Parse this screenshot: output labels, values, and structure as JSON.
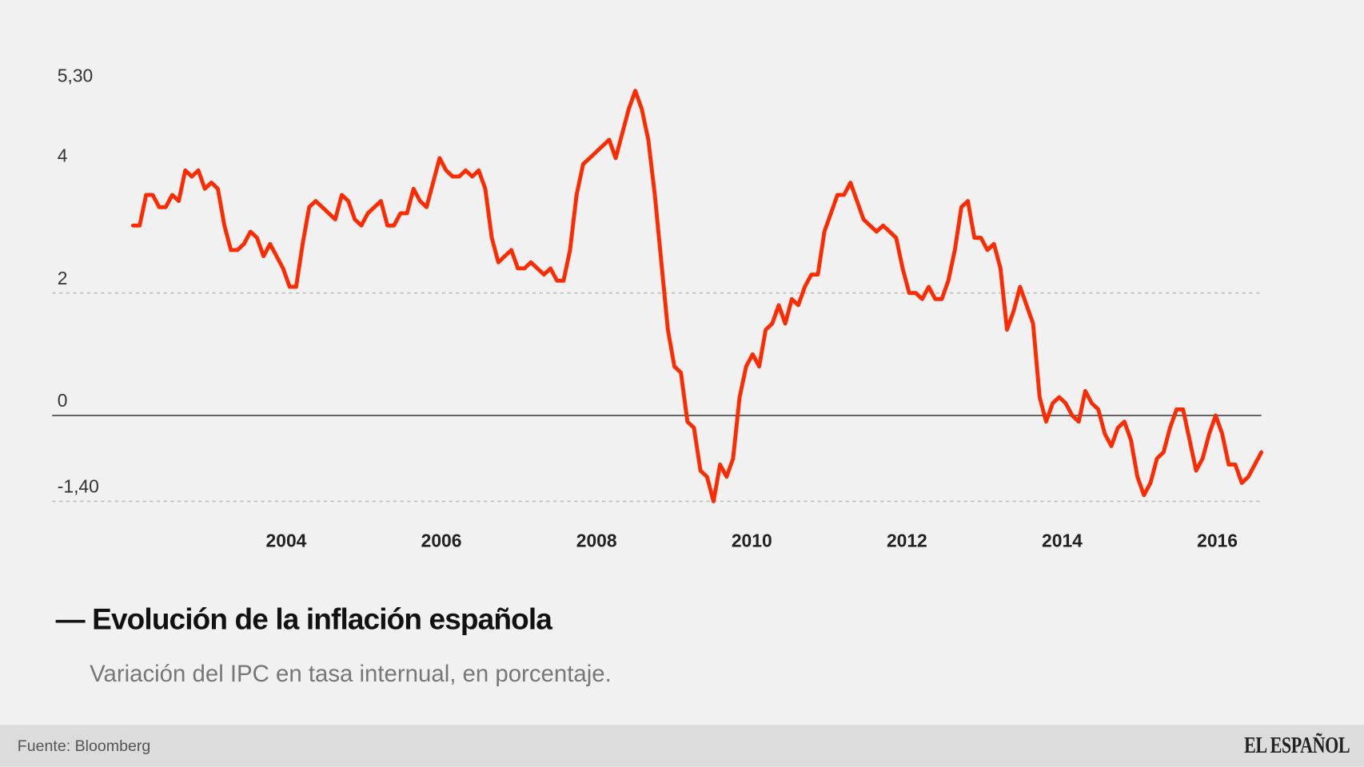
{
  "chart_data": {
    "type": "line",
    "title": "Evolución de la inflación española",
    "subtitle": "Variación del IPC en tasa internual, en porcentaje.",
    "source": "Fuente: Bloomberg",
    "ylim": [
      -1.4,
      5.3
    ],
    "yticks": [
      {
        "value": 5.3,
        "label": "5,30"
      },
      {
        "value": 4,
        "label": "4"
      },
      {
        "value": 2,
        "label": "2"
      },
      {
        "value": 0,
        "label": "0"
      },
      {
        "value": -1.4,
        "label": "-1,40"
      }
    ],
    "xticks": [
      "2004",
      "2006",
      "2008",
      "2010",
      "2012",
      "2014",
      "2016"
    ],
    "gridlines": {
      "dashed": [
        2,
        -1.4
      ],
      "solid": [
        0
      ]
    },
    "line_color": "#ff2a00",
    "series": [
      {
        "x": [
          "2002-01",
          "2002-02",
          "2002-03",
          "2002-04",
          "2002-05",
          "2002-06",
          "2002-07",
          "2002-08",
          "2002-09",
          "2002-10",
          "2002-11",
          "2002-12",
          "2003-01",
          "2003-02",
          "2003-03",
          "2003-04",
          "2003-05",
          "2003-06",
          "2003-07",
          "2003-08",
          "2003-09",
          "2003-10",
          "2003-11",
          "2003-12",
          "2004-01",
          "2004-02",
          "2004-03",
          "2004-04",
          "2004-05",
          "2004-06",
          "2004-07",
          "2004-08",
          "2004-09",
          "2004-10",
          "2004-11",
          "2004-12",
          "2005-01",
          "2005-02",
          "2005-03",
          "2005-04",
          "2005-05",
          "2005-06",
          "2005-07",
          "2005-08",
          "2005-09",
          "2005-10",
          "2005-11",
          "2005-12",
          "2006-01",
          "2006-02",
          "2006-03",
          "2006-04",
          "2006-05",
          "2006-06",
          "2006-07",
          "2006-08",
          "2006-09",
          "2006-10",
          "2006-11",
          "2006-12",
          "2007-01",
          "2007-02",
          "2007-03",
          "2007-04",
          "2007-05",
          "2007-06",
          "2007-07",
          "2007-08",
          "2007-09",
          "2007-10",
          "2007-11",
          "2007-12",
          "2008-01",
          "2008-02",
          "2008-03",
          "2008-04",
          "2008-05",
          "2008-06",
          "2008-07",
          "2008-08",
          "2008-09",
          "2008-10",
          "2008-11",
          "2008-12",
          "2009-01",
          "2009-02",
          "2009-03",
          "2009-04",
          "2009-05",
          "2009-06",
          "2009-07",
          "2009-08",
          "2009-09",
          "2009-10",
          "2009-11",
          "2009-12",
          "2010-01",
          "2010-02",
          "2010-03",
          "2010-04",
          "2010-05",
          "2010-06",
          "2010-07",
          "2010-08",
          "2010-09",
          "2010-10",
          "2010-11",
          "2010-12",
          "2011-01",
          "2011-02",
          "2011-03",
          "2011-04",
          "2011-05",
          "2011-06",
          "2011-07",
          "2011-08",
          "2011-09",
          "2011-10",
          "2011-11",
          "2011-12",
          "2012-01",
          "2012-02",
          "2012-03",
          "2012-04",
          "2012-05",
          "2012-06",
          "2012-07",
          "2012-08",
          "2012-09",
          "2012-10",
          "2012-11",
          "2012-12",
          "2013-01",
          "2013-02",
          "2013-03",
          "2013-04",
          "2013-05",
          "2013-06",
          "2013-07",
          "2013-08",
          "2013-09",
          "2013-10",
          "2013-11",
          "2013-12",
          "2014-01",
          "2014-02",
          "2014-03",
          "2014-04",
          "2014-05",
          "2014-06",
          "2014-07",
          "2014-08",
          "2014-09",
          "2014-10",
          "2014-11",
          "2014-12",
          "2015-01",
          "2015-02",
          "2015-03",
          "2015-04",
          "2015-05",
          "2015-06",
          "2015-07",
          "2015-08",
          "2015-09",
          "2015-10",
          "2015-11",
          "2015-12",
          "2016-01",
          "2016-02",
          "2016-03",
          "2016-04",
          "2016-05",
          "2016-06"
        ],
        "values": [
          3.1,
          3.1,
          3.6,
          3.6,
          3.4,
          3.4,
          3.6,
          3.5,
          4.0,
          3.9,
          4.0,
          3.7,
          3.8,
          3.7,
          3.1,
          2.7,
          2.7,
          2.8,
          3.0,
          2.9,
          2.6,
          2.8,
          2.6,
          2.4,
          2.1,
          2.1,
          2.8,
          3.4,
          3.5,
          3.4,
          3.3,
          3.2,
          3.6,
          3.5,
          3.2,
          3.1,
          3.3,
          3.4,
          3.5,
          3.1,
          3.1,
          3.3,
          3.3,
          3.7,
          3.5,
          3.4,
          3.8,
          4.2,
          4.0,
          3.9,
          3.9,
          4.0,
          3.9,
          4.0,
          3.7,
          2.9,
          2.5,
          2.6,
          2.7,
          2.4,
          2.4,
          2.5,
          2.4,
          2.3,
          2.4,
          2.2,
          2.2,
          2.7,
          3.6,
          4.1,
          4.2,
          4.3,
          4.4,
          4.5,
          4.2,
          4.6,
          5.0,
          5.3,
          5.0,
          4.5,
          3.6,
          2.5,
          1.4,
          0.8,
          0.7,
          -0.1,
          -0.2,
          -0.9,
          -1.0,
          -1.4,
          -0.8,
          -1.0,
          -0.7,
          0.3,
          0.8,
          1.0,
          0.8,
          1.4,
          1.5,
          1.8,
          1.5,
          1.9,
          1.8,
          2.1,
          2.3,
          2.3,
          3.0,
          3.3,
          3.6,
          3.6,
          3.8,
          3.5,
          3.2,
          3.1,
          3.0,
          3.1,
          3.0,
          2.9,
          2.4,
          2.0,
          2.0,
          1.9,
          2.1,
          1.9,
          1.9,
          2.2,
          2.7,
          3.4,
          3.5,
          2.9,
          2.9,
          2.7,
          2.8,
          2.4,
          1.4,
          1.7,
          2.1,
          1.8,
          1.5,
          0.3,
          -0.1,
          0.2,
          0.3,
          0.2,
          0.0,
          -0.1,
          0.4,
          0.2,
          0.1,
          -0.3,
          -0.5,
          -0.2,
          -0.1,
          -0.4,
          -1.0,
          -1.3,
          -1.1,
          -0.7,
          -0.6,
          -0.2,
          0.1,
          0.1,
          -0.4,
          -0.9,
          -0.7,
          -0.3,
          0.0,
          -0.3,
          -0.8,
          -0.8,
          -1.1,
          -1.0,
          -0.8,
          -0.6
        ]
      }
    ]
  },
  "logo": "EL ESPAÑOL"
}
